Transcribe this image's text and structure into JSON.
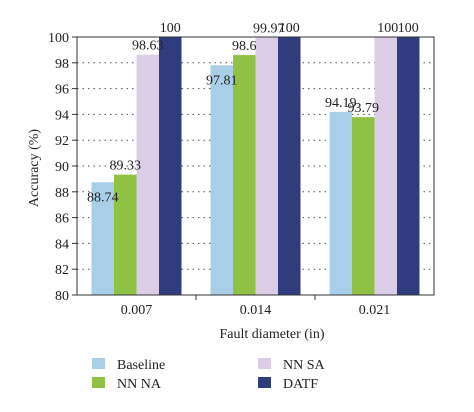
{
  "chart_data": {
    "type": "bar",
    "categories": [
      "0.007",
      "0.014",
      "0.021"
    ],
    "series": [
      {
        "name": "Baseline",
        "values": [
          88.74,
          97.81,
          94.19
        ],
        "labels": [
          "88.74",
          "97.81",
          "94.19"
        ],
        "color": "#a9cfe8"
      },
      {
        "name": "NN NA",
        "values": [
          89.33,
          98.6,
          93.79
        ],
        "labels": [
          "89.33",
          "98.6",
          "93.79"
        ],
        "color": "#8fc244"
      },
      {
        "name": "NN SA",
        "values": [
          98.63,
          99.97,
          100
        ],
        "labels": [
          "98.63",
          "99.97",
          "100"
        ],
        "color": "#dccde6"
      },
      {
        "name": "DATF",
        "values": [
          100,
          100,
          100
        ],
        "labels": [
          "100",
          "100",
          "100"
        ],
        "color": "#2f3d7e"
      }
    ],
    "xlabel": "Fault diameter (in)",
    "ylabel": "Accuracy (%)",
    "ylim": [
      80,
      100
    ],
    "yticks": [
      "80",
      "82",
      "84",
      "86",
      "88",
      "90",
      "92",
      "94",
      "96",
      "98",
      "100"
    ],
    "grid": "dotted horizontal",
    "legend": "bottom"
  }
}
